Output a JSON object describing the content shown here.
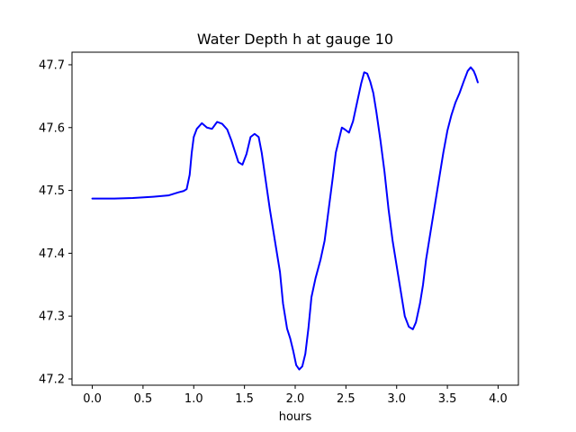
{
  "chart_data": {
    "type": "line",
    "title": "Water Depth h at gauge 10",
    "xlabel": "hours",
    "ylabel": "",
    "xlim": [
      -0.2,
      4.2
    ],
    "ylim": [
      47.19,
      47.72
    ],
    "xticks": [
      0.0,
      0.5,
      1.0,
      1.5,
      2.0,
      2.5,
      3.0,
      3.5,
      4.0
    ],
    "xtick_labels": [
      "0.0",
      "0.5",
      "1.0",
      "1.5",
      "2.0",
      "2.5",
      "3.0",
      "3.5",
      "4.0"
    ],
    "yticks": [
      47.2,
      47.3,
      47.4,
      47.5,
      47.6,
      47.7
    ],
    "ytick_labels": [
      "47.2",
      "47.3",
      "47.4",
      "47.5",
      "47.6",
      "47.7"
    ],
    "grid": false,
    "series": [
      {
        "color": "#0000ff",
        "points": [
          [
            0.0,
            47.487
          ],
          [
            0.2,
            47.487
          ],
          [
            0.4,
            47.488
          ],
          [
            0.6,
            47.49
          ],
          [
            0.75,
            47.492
          ],
          [
            0.85,
            47.497
          ],
          [
            0.9,
            47.499
          ],
          [
            0.93,
            47.502
          ],
          [
            0.96,
            47.525
          ],
          [
            0.98,
            47.56
          ],
          [
            1.0,
            47.585
          ],
          [
            1.03,
            47.598
          ],
          [
            1.08,
            47.607
          ],
          [
            1.13,
            47.6
          ],
          [
            1.18,
            47.598
          ],
          [
            1.23,
            47.609
          ],
          [
            1.28,
            47.606
          ],
          [
            1.33,
            47.597
          ],
          [
            1.37,
            47.58
          ],
          [
            1.41,
            47.56
          ],
          [
            1.44,
            47.545
          ],
          [
            1.48,
            47.541
          ],
          [
            1.52,
            47.558
          ],
          [
            1.56,
            47.585
          ],
          [
            1.6,
            47.59
          ],
          [
            1.64,
            47.585
          ],
          [
            1.67,
            47.56
          ],
          [
            1.71,
            47.515
          ],
          [
            1.75,
            47.47
          ],
          [
            1.8,
            47.42
          ],
          [
            1.85,
            47.37
          ],
          [
            1.88,
            47.32
          ],
          [
            1.92,
            47.28
          ],
          [
            1.95,
            47.265
          ],
          [
            1.98,
            47.245
          ],
          [
            2.01,
            47.222
          ],
          [
            2.04,
            47.215
          ],
          [
            2.07,
            47.22
          ],
          [
            2.1,
            47.24
          ],
          [
            2.13,
            47.28
          ],
          [
            2.16,
            47.33
          ],
          [
            2.2,
            47.36
          ],
          [
            2.25,
            47.39
          ],
          [
            2.29,
            47.42
          ],
          [
            2.33,
            47.47
          ],
          [
            2.37,
            47.52
          ],
          [
            2.4,
            47.56
          ],
          [
            2.43,
            47.58
          ],
          [
            2.46,
            47.6
          ],
          [
            2.49,
            47.597
          ],
          [
            2.53,
            47.592
          ],
          [
            2.57,
            47.61
          ],
          [
            2.61,
            47.64
          ],
          [
            2.65,
            47.67
          ],
          [
            2.68,
            47.688
          ],
          [
            2.71,
            47.686
          ],
          [
            2.74,
            47.673
          ],
          [
            2.77,
            47.655
          ],
          [
            2.8,
            47.625
          ],
          [
            2.84,
            47.58
          ],
          [
            2.88,
            47.53
          ],
          [
            2.92,
            47.47
          ],
          [
            2.96,
            47.42
          ],
          [
            3.0,
            47.38
          ],
          [
            3.04,
            47.34
          ],
          [
            3.08,
            47.3
          ],
          [
            3.12,
            47.283
          ],
          [
            3.16,
            47.279
          ],
          [
            3.19,
            47.29
          ],
          [
            3.23,
            47.32
          ],
          [
            3.26,
            47.35
          ],
          [
            3.29,
            47.39
          ],
          [
            3.32,
            47.42
          ],
          [
            3.35,
            47.45
          ],
          [
            3.38,
            47.48
          ],
          [
            3.42,
            47.52
          ],
          [
            3.46,
            47.56
          ],
          [
            3.5,
            47.595
          ],
          [
            3.54,
            47.62
          ],
          [
            3.58,
            47.64
          ],
          [
            3.62,
            47.655
          ],
          [
            3.66,
            47.673
          ],
          [
            3.7,
            47.69
          ],
          [
            3.73,
            47.696
          ],
          [
            3.76,
            47.69
          ],
          [
            3.78,
            47.682
          ],
          [
            3.8,
            47.672
          ]
        ]
      }
    ]
  }
}
